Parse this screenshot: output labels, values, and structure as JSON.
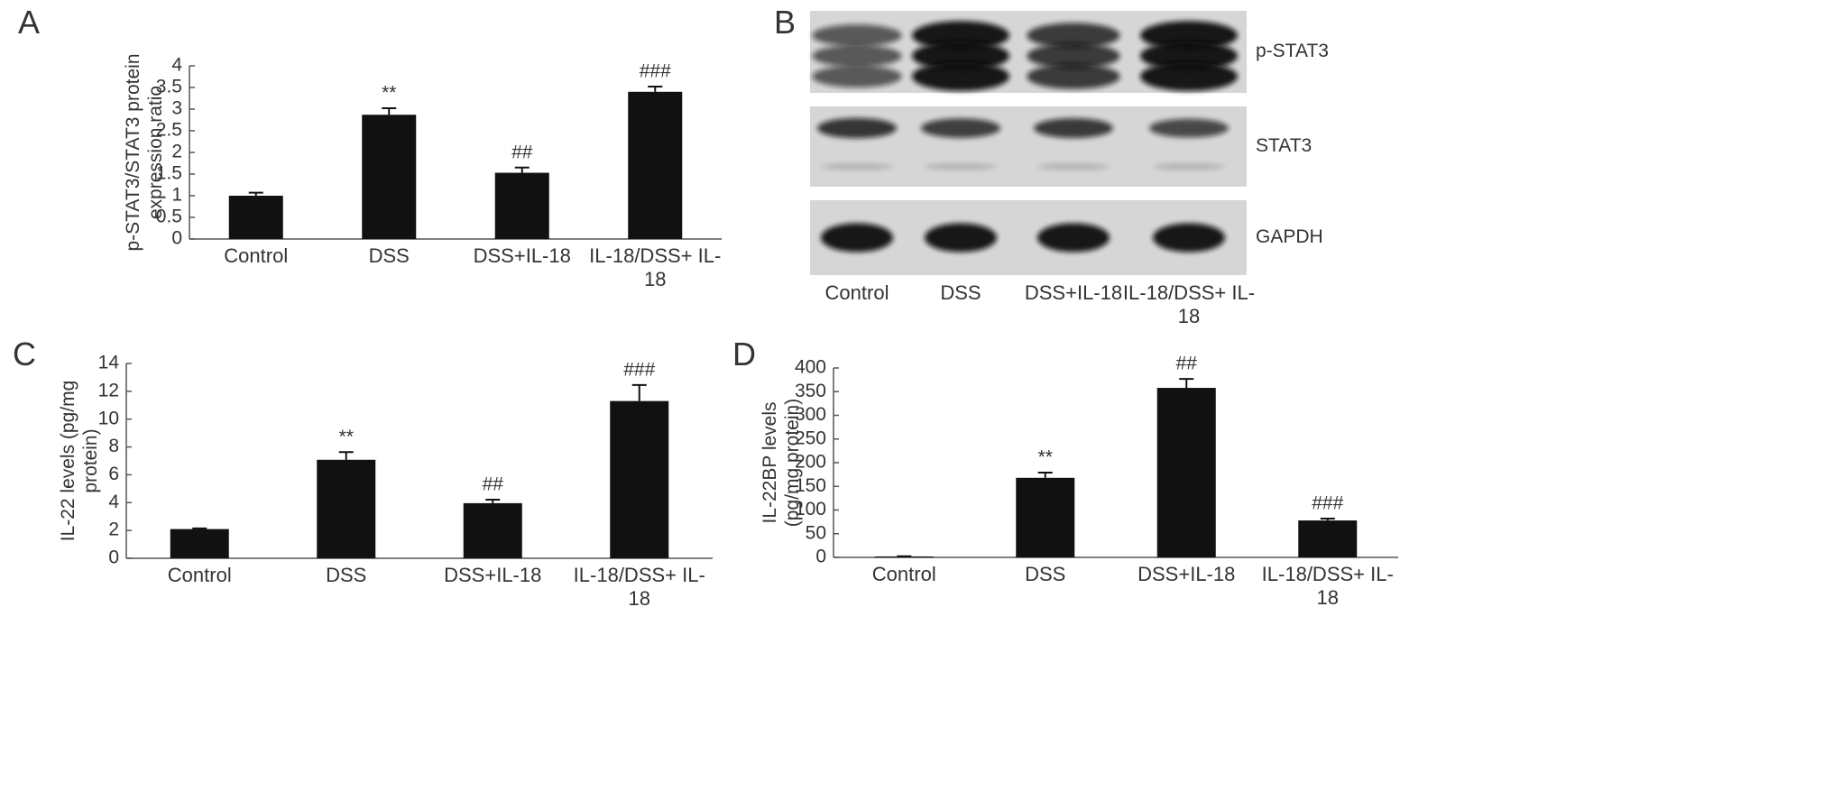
{
  "chart_data": [
    {
      "type": "bar",
      "panel": "A",
      "y_label": "p-STAT3/STAT3 protein expression ratio",
      "categories": [
        "Control",
        "DSS",
        "DSS+IL-18",
        "IL-18/DSS+ IL-18"
      ],
      "values": [
        1.0,
        2.87,
        1.53,
        3.4
      ],
      "errors": [
        0.07,
        0.15,
        0.12,
        0.12
      ],
      "annotations": [
        null,
        "**",
        "##",
        "###"
      ],
      "color": "#111111",
      "ylim": [
        0,
        4
      ],
      "yticks": [
        0,
        0.5,
        1,
        1.5,
        2,
        2.5,
        3,
        3.5,
        4
      ]
    },
    {
      "type": "bar",
      "panel": "C",
      "y_label": "IL-22 levels (pg/mg protein)",
      "categories": [
        "Control",
        "DSS",
        "DSS+IL-18",
        "IL-18/DSS+ IL-18"
      ],
      "values": [
        2.1,
        7.08,
        3.96,
        11.3
      ],
      "errors": [
        0.05,
        0.55,
        0.25,
        1.15
      ],
      "annotations": [
        null,
        "**",
        "##",
        "###"
      ],
      "color": "#111111",
      "ylim": [
        0,
        14
      ],
      "yticks": [
        0,
        2,
        4,
        6,
        8,
        10,
        12,
        14
      ]
    },
    {
      "type": "bar",
      "panel": "D",
      "y_label": "IL-22BP levels (pg/mg protein)",
      "categories": [
        "Control",
        "DSS",
        "DSS+IL-18",
        "IL-18/DSS+ IL-18"
      ],
      "values": [
        2,
        168,
        358,
        78
      ],
      "errors": [
        0.5,
        11,
        19,
        4
      ],
      "annotations": [
        null,
        "**",
        "##",
        "###"
      ],
      "color": "#111111",
      "ylim": [
        0,
        400
      ],
      "yticks": [
        0,
        50,
        100,
        150,
        200,
        250,
        300,
        350,
        400
      ]
    }
  ],
  "blot": {
    "panel": "B",
    "rows": [
      "p-STAT3",
      "STAT3",
      "GAPDH"
    ],
    "categories": [
      "Control",
      "DSS",
      "DSS+IL-18",
      "IL-18/DSS+ IL-18"
    ]
  }
}
